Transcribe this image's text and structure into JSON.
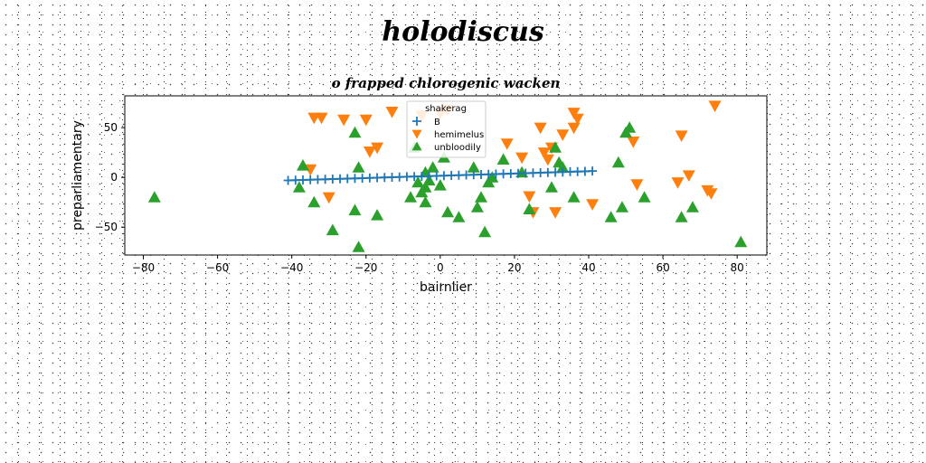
{
  "figure": {
    "suptitle": "holodiscus"
  },
  "chart_data": {
    "type": "scatter",
    "title": "o frapped chlorogenic wacken",
    "xlabel": "bairnlier",
    "ylabel": "preparliamentary",
    "xlim": [
      -85,
      88
    ],
    "ylim": [
      -78,
      82
    ],
    "xticks": [
      "−80",
      "−60",
      "−40",
      "−20",
      "0",
      "20",
      "40",
      "60",
      "80"
    ],
    "xtick_values": [
      -80,
      -60,
      -40,
      -20,
      0,
      20,
      40,
      60,
      80
    ],
    "yticks": [
      "−50",
      "0",
      "50"
    ],
    "ytick_values": [
      -50,
      0,
      50
    ],
    "grid": false,
    "legend": {
      "title": "shakerag",
      "placement": "upper-center"
    },
    "series": [
      {
        "name": "B",
        "marker": "plus",
        "color": "#1f77b4",
        "x": [
          -41,
          -39,
          -37,
          -35,
          -33,
          -31,
          -29,
          -27,
          -25,
          -23,
          -21,
          -19,
          -17,
          -15,
          -13,
          -11,
          -9,
          -7,
          -5,
          -3,
          -1,
          1,
          3,
          5,
          7,
          9,
          11,
          13,
          15,
          17,
          19,
          21,
          23,
          25,
          27,
          29,
          31,
          33,
          35,
          37,
          39,
          41
        ],
        "y": [
          -3.0,
          -2.8,
          -2.6,
          -2.3,
          -2.1,
          -1.9,
          -1.6,
          -1.4,
          -1.2,
          -1.0,
          -0.8,
          -0.5,
          -0.3,
          0.0,
          0.2,
          0.4,
          0.7,
          0.9,
          1.1,
          1.3,
          1.5,
          1.8,
          2.0,
          2.2,
          2.5,
          2.7,
          2.9,
          3.1,
          3.4,
          3.6,
          3.8,
          4.0,
          4.3,
          4.5,
          4.7,
          5.0,
          5.2,
          5.4,
          5.7,
          5.9,
          6.1,
          6.4
        ]
      },
      {
        "name": "hemimelus",
        "marker": "triangle-down",
        "color": "#ff7f0e",
        "x": [
          -34,
          -32,
          -26,
          -20,
          -13,
          -5,
          0,
          2,
          -35,
          -19,
          -17,
          -30,
          18,
          22,
          27,
          28,
          30,
          29,
          33,
          36,
          37,
          36,
          52,
          65,
          67,
          64,
          72,
          73,
          74,
          41,
          53,
          24,
          31,
          25
        ],
        "y": [
          60,
          60,
          58,
          58,
          66,
          62,
          65,
          68,
          8,
          26,
          30,
          -20,
          34,
          20,
          50,
          25,
          30,
          18,
          43,
          65,
          59,
          50,
          36,
          42,
          2,
          -5,
          -13,
          -16,
          72,
          -27,
          -7,
          -19,
          -35,
          -35
        ],
        "size": 14
      },
      {
        "name": "unbloodily",
        "marker": "triangle-up",
        "color": "#2ca02c",
        "x": [
          -77,
          -37,
          -38,
          -34,
          -29,
          -23,
          -23,
          -22,
          -22,
          -17,
          -8,
          -7,
          -4,
          -3,
          -4,
          -6,
          0,
          2,
          5,
          9,
          10,
          11,
          12,
          13,
          14,
          17,
          22,
          24,
          30,
          31,
          32,
          33,
          36,
          46,
          48,
          49,
          50,
          51,
          55,
          65,
          68,
          81,
          -5,
          -4,
          1,
          -2
        ],
        "y": [
          -20,
          12,
          -10,
          -25,
          -53,
          -33,
          45,
          10,
          -70,
          -38,
          -20,
          30,
          5,
          -3,
          -10,
          -5,
          -8,
          -35,
          -40,
          10,
          -30,
          -20,
          -55,
          -5,
          0,
          18,
          5,
          -32,
          -10,
          30,
          15,
          10,
          -20,
          -40,
          15,
          -30,
          45,
          50,
          -20,
          -40,
          -30,
          -65,
          -15,
          -25,
          20,
          10
        ],
        "size": 14
      }
    ]
  }
}
